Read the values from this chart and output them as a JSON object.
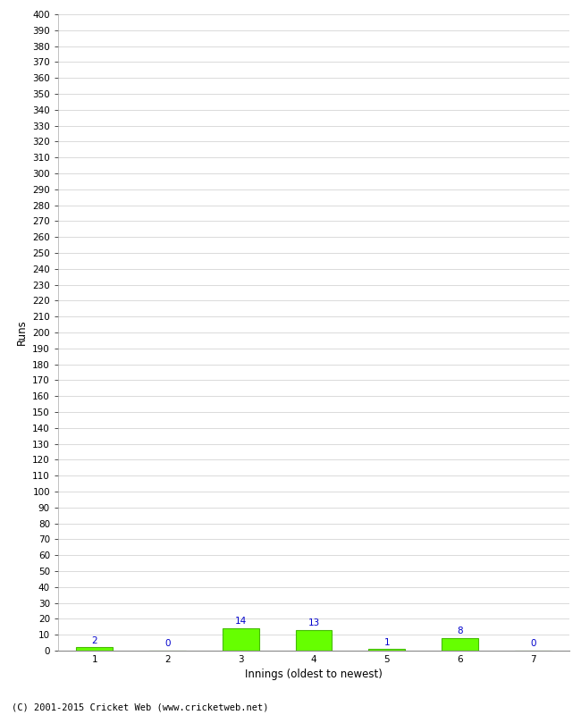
{
  "categories": [
    1,
    2,
    3,
    4,
    5,
    6,
    7
  ],
  "values": [
    2,
    0,
    14,
    13,
    1,
    8,
    0
  ],
  "bar_color": "#66ff00",
  "bar_edge_color": "#44bb00",
  "value_label_color": "#0000cc",
  "xlabel": "Innings (oldest to newest)",
  "ylabel": "Runs",
  "ylim": [
    0,
    400
  ],
  "ytick_step": 10,
  "background_color": "#ffffff",
  "grid_color": "#cccccc",
  "footer": "(C) 2001-2015 Cricket Web (www.cricketweb.net)",
  "value_fontsize": 7.5,
  "label_fontsize": 8.5,
  "tick_fontsize": 7.5,
  "footer_fontsize": 7.5
}
